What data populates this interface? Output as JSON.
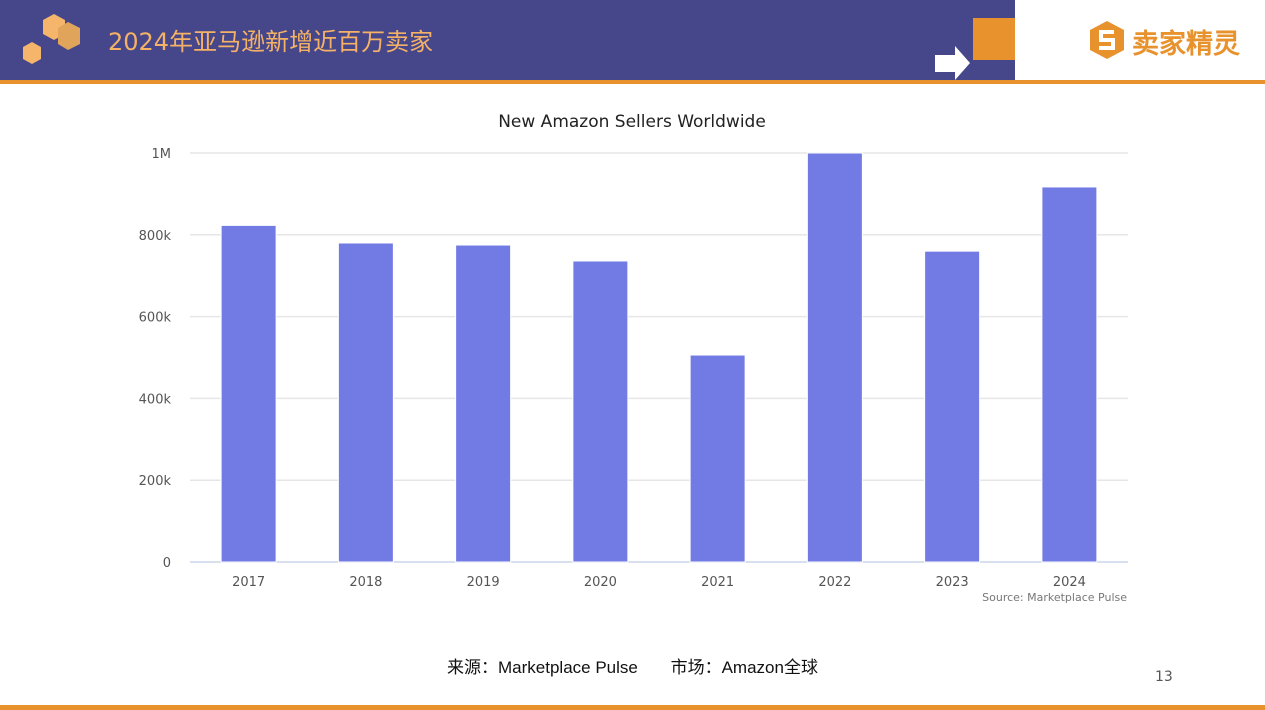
{
  "header": {
    "title": "2024年亚马逊新增近百万卖家",
    "brand": "卖家精灵"
  },
  "colors": {
    "header_bg": "#46468a",
    "accent": "#e8922e",
    "bar": "#727be4"
  },
  "chart_data": {
    "type": "bar",
    "title": "New Amazon Sellers Worldwide",
    "categories": [
      "2017",
      "2018",
      "2019",
      "2020",
      "2021",
      "2022",
      "2023",
      "2024"
    ],
    "values": [
      823000,
      780000,
      775000,
      736000,
      506000,
      1000000,
      760000,
      917000
    ],
    "ylim": [
      0,
      1000000
    ],
    "yticks": [
      0,
      200000,
      400000,
      600000,
      800000,
      1000000
    ],
    "ytick_labels": [
      "0",
      "200k",
      "400k",
      "600k",
      "800k",
      "1M"
    ],
    "xlabel": "",
    "ylabel": "",
    "grid": true,
    "legend": "none",
    "credit": "Source: Marketplace Pulse"
  },
  "footer": {
    "source": "来源：Marketplace Pulse",
    "market": "市场：Amazon全球",
    "page": "13"
  }
}
